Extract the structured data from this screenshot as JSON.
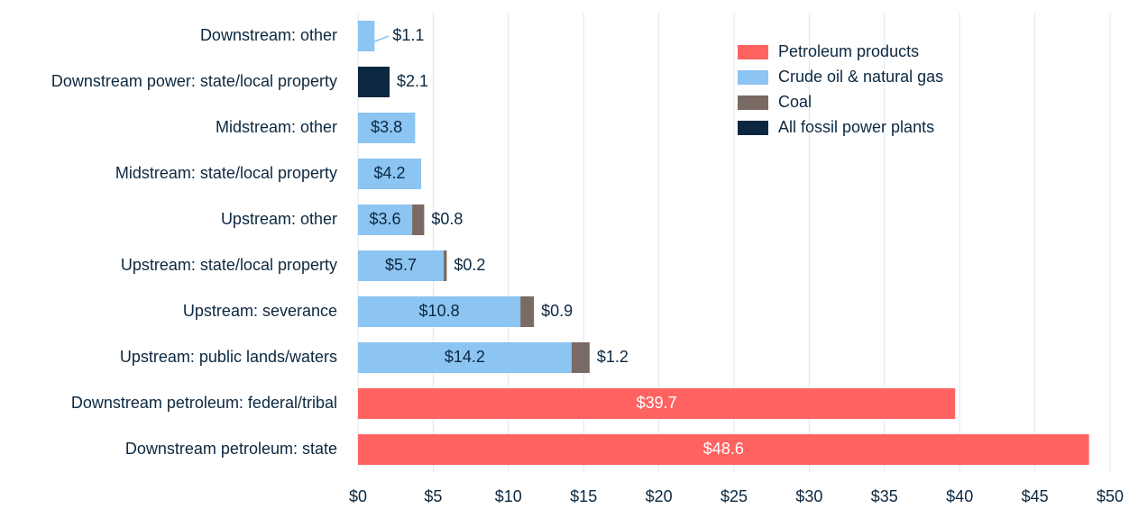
{
  "chart_data": {
    "type": "stacked-bar-horizontal",
    "categories": [
      "Downstream: other",
      "Downstream power: state/local property",
      "Midstream: other",
      "Midstream: state/local property",
      "Upstream: other",
      "Upstream: state/local property",
      "Upstream: severance",
      "Upstream: public lands/waters",
      "Downstream petroleum: federal/tribal",
      "Downstream petroleum: state"
    ],
    "series": [
      {
        "name": "Petroleum products",
        "color": "#ff6361",
        "values": [
          null,
          null,
          null,
          null,
          null,
          null,
          null,
          null,
          39.7,
          48.6
        ],
        "value_labels": [
          null,
          null,
          null,
          null,
          null,
          null,
          null,
          null,
          "$39.7",
          "$48.6"
        ]
      },
      {
        "name": "Crude oil & natural gas",
        "color": "#8cc4f2",
        "values": [
          1.1,
          null,
          3.8,
          4.2,
          3.6,
          5.7,
          10.8,
          14.2,
          null,
          null
        ],
        "value_labels": [
          "$1.1",
          null,
          "$3.8",
          "$4.2",
          "$3.6",
          "$5.7",
          "$10.8",
          "$14.2",
          null,
          null
        ]
      },
      {
        "name": "Coal",
        "color": "#7a6a64",
        "values": [
          null,
          null,
          null,
          null,
          0.8,
          0.2,
          0.9,
          1.2,
          null,
          null
        ],
        "value_labels": [
          null,
          null,
          null,
          null,
          "$0.8",
          "$0.2",
          "$0.9",
          "$1.2",
          null,
          null
        ]
      },
      {
        "name": "All fossil power plants",
        "color": "#0c2840",
        "values": [
          null,
          2.1,
          null,
          null,
          null,
          null,
          null,
          null,
          null,
          null
        ],
        "value_labels": [
          null,
          "$2.1",
          null,
          null,
          null,
          null,
          null,
          null,
          null,
          null
        ]
      }
    ],
    "xlim": [
      0,
      50
    ],
    "xticks": [
      {
        "value": 0,
        "label": "$0"
      },
      {
        "value": 5,
        "label": "$5"
      },
      {
        "value": 10,
        "label": "$10"
      },
      {
        "value": 15,
        "label": "$15"
      },
      {
        "value": 20,
        "label": "$20"
      },
      {
        "value": 25,
        "label": "$25"
      },
      {
        "value": 30,
        "label": "$30"
      },
      {
        "value": 35,
        "label": "$35"
      },
      {
        "value": 40,
        "label": "$40"
      },
      {
        "value": 45,
        "label": "$45"
      },
      {
        "value": 50,
        "label": "$50"
      }
    ],
    "grid": true,
    "legend": "upper right"
  }
}
